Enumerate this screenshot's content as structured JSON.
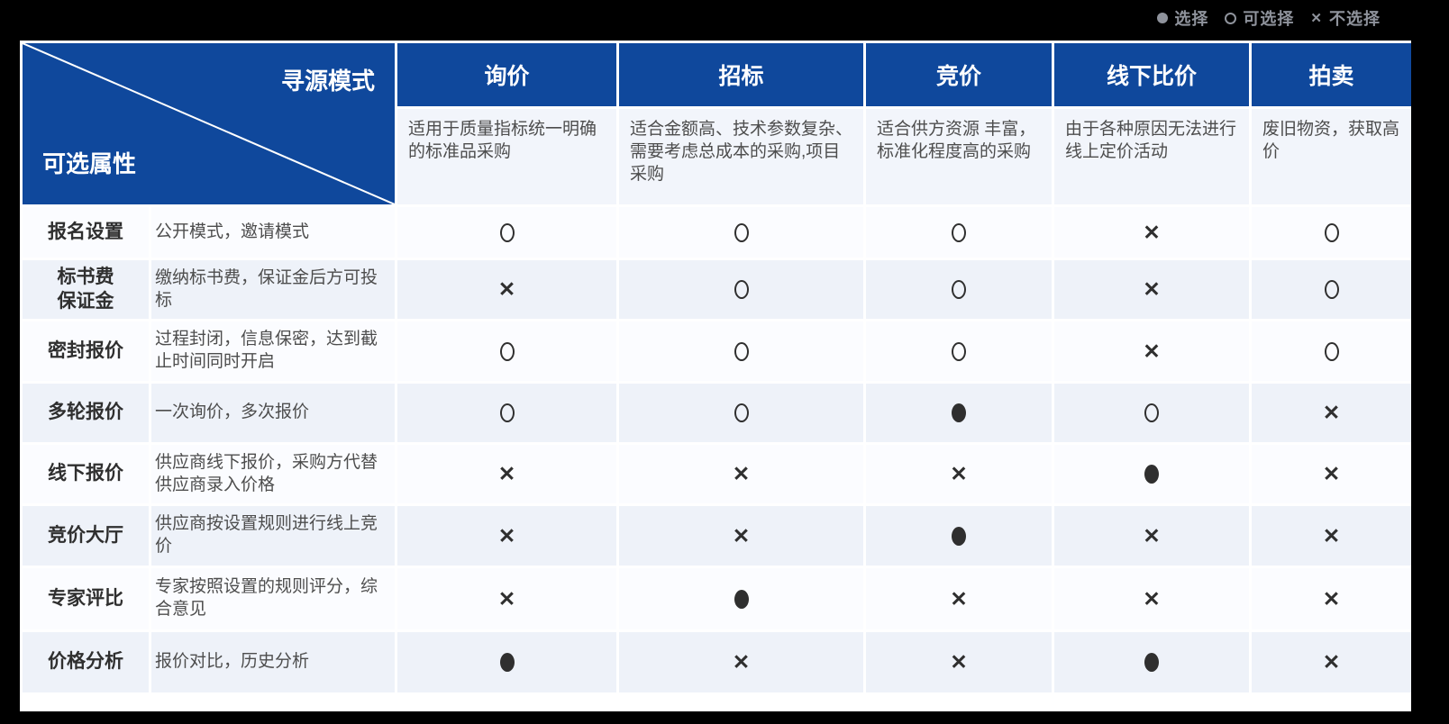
{
  "legend": {
    "items": [
      {
        "symbol": "dot",
        "label": "选择"
      },
      {
        "symbol": "circle",
        "label": "可选择"
      },
      {
        "symbol": "cross",
        "label": "不选择"
      }
    ]
  },
  "corner": {
    "top_label": "寻源模式",
    "bottom_label": "可选属性"
  },
  "chart_data": {
    "type": "table",
    "symbol_meanings": {
      "dot": "选择",
      "circle": "可选择",
      "cross": "不选择"
    },
    "columns": [
      {
        "name": "询价",
        "desc": "适用于质量指标统一明确的标准品采购"
      },
      {
        "name": "招标",
        "desc": "适合金额高、技术参数复杂、需要考虑总成本的采购,项目采购"
      },
      {
        "name": "竞价",
        "desc": "适合供方资源 丰富，标准化程度高的采购"
      },
      {
        "name": "线下比价",
        "desc": "由于各种原因无法进行线上定价活动"
      },
      {
        "name": "拍卖",
        "desc": "废旧物资，获取高价"
      }
    ],
    "rows": [
      {
        "label": "报名设置",
        "desc": "公开模式，邀请模式",
        "values": [
          "circle",
          "circle",
          "circle",
          "cross",
          "circle"
        ]
      },
      {
        "label": "标书费\n保证金",
        "desc": "缴纳标书费，保证金后方可投标",
        "values": [
          "cross",
          "circle",
          "circle",
          "cross",
          "circle"
        ]
      },
      {
        "label": "密封报价",
        "desc": "过程封闭，信息保密，达到截止时间同时开启",
        "values": [
          "circle",
          "circle",
          "circle",
          "cross",
          "circle"
        ]
      },
      {
        "label": "多轮报价",
        "desc": "一次询价，多次报价",
        "values": [
          "circle",
          "circle",
          "dot",
          "circle",
          "cross"
        ]
      },
      {
        "label": "线下报价",
        "desc": "供应商线下报价，采购方代替供应商录入价格",
        "values": [
          "cross",
          "cross",
          "cross",
          "dot",
          "cross"
        ]
      },
      {
        "label": "竞价大厅",
        "desc": "供应商按设置规则进行线上竞价",
        "values": [
          "cross",
          "cross",
          "dot",
          "cross",
          "cross"
        ]
      },
      {
        "label": "专家评比",
        "desc": "专家按照设置的规则评分，综合意见",
        "values": [
          "cross",
          "dot",
          "cross",
          "cross",
          "cross"
        ]
      },
      {
        "label": "价格分析",
        "desc": "报价对比，历史分析",
        "values": [
          "dot",
          "cross",
          "cross",
          "dot",
          "cross"
        ]
      }
    ]
  },
  "colors": {
    "header_blue": "#0f489c",
    "page_background": "#000000",
    "row_base": "#fbfcff",
    "row_alt": "#eef2f9",
    "desc_background": "#f2f5fb",
    "symbol": "#2f2f2f",
    "legend_text": "#8f939c"
  }
}
